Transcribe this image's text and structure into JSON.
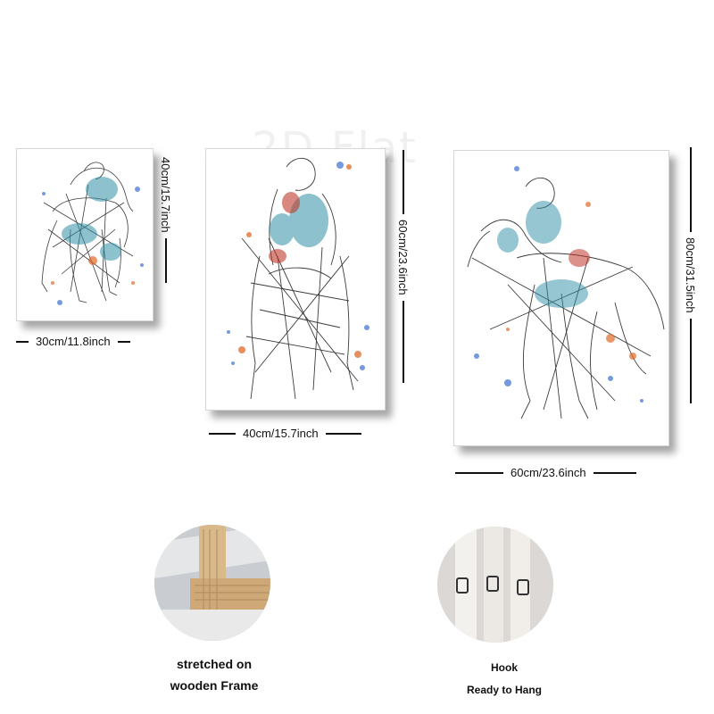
{
  "watermark": "2D Flat",
  "panels": [
    {
      "width_label": "30cm/11.8inch",
      "height_label": "40cm/15.7inch"
    },
    {
      "width_label": "40cm/15.7inch",
      "height_label": "60cm/23.6inch"
    },
    {
      "width_label": "60cm/23.6inch",
      "height_label": "80cm/31.5inch"
    }
  ],
  "features": [
    {
      "caption_lines": [
        "stretched on",
        "wooden Frame"
      ]
    },
    {
      "caption_lines": [
        "Hook",
        "Ready to Hang"
      ]
    }
  ],
  "colors": {
    "ink": "#1a1a1a",
    "teal": "#2f8fa6",
    "orange": "#e06a2a",
    "blue": "#3b6fd1",
    "red": "#c0392b",
    "wood": "#d9b88a"
  }
}
